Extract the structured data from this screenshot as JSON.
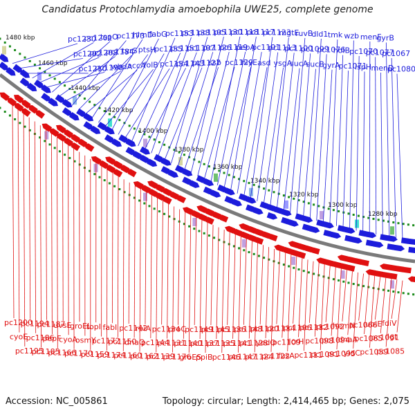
{
  "title": "Candidatus Protochlamydia amoebophila UWE25, complete genome",
  "footer": {
    "accession": "Accession: NC_005861",
    "summary": "Topology: circular; Length: 2,414,465 bp; Genes: 2,075"
  },
  "colors": {
    "forward": "#1c1cdc",
    "reverse": "#e01010",
    "highlight": "#f08ad0",
    "backbone": "#808080",
    "tick": "#1a8a1a"
  },
  "kbp_ticks": [
    "1480 kbp",
    "1460 kbp",
    "1440 kbp",
    "1420 kbp",
    "1400 kbp",
    "1380 kbp",
    "1360 kbp",
    "1340 kbp",
    "1320 kbp",
    "1300 kbp",
    "1280 kbp"
  ],
  "forward_genes": [
    "pc1230",
    "pc1202",
    "pc1210",
    "pc1201",
    "pc1208",
    "pc1198",
    "tspO",
    "pc1184",
    "wbdA",
    "pc1173",
    "tyrS",
    "accA",
    "himD",
    "ptsH",
    "folB",
    "fabG",
    "pc1155",
    "pc1154",
    "pc1153",
    "pc1151",
    "pc1143",
    "pc1138",
    "pc1107",
    "pc1127",
    "pc1105",
    "pc1126",
    "ssb",
    "pc1130",
    "pc1119",
    "pc1129",
    "pc1118",
    "pepA",
    "hlyE",
    "pc1117",
    "pc1101",
    "asd",
    "pc1123",
    "pc1113",
    "ysgA",
    "mgtE",
    "pc1100",
    "sucA",
    "ruvB",
    "pc1099",
    "sucB",
    "dld1",
    "pc1076",
    "gyrA",
    "tmk",
    "holB",
    "pc1071",
    "wzb",
    "pc1070",
    "ispH",
    "menF",
    "pc1077",
    "menD",
    "gyrB",
    "pc1067",
    "pc1080"
  ],
  "reverse_genes": [
    "pc1200",
    "cyoE",
    "pc1195",
    "pc1194",
    "pc1186",
    "pc1185",
    "pc1187",
    "pepF",
    "pc1166",
    "uvsE",
    "cyoA",
    "pc1170",
    "groEL",
    "osmY",
    "pc1159",
    "topI",
    "pc1172",
    "pc1174",
    "fabI",
    "pc1150",
    "pc1160",
    "pc1142",
    "dnaQ",
    "pc1162",
    "rpiA",
    "pc1144",
    "pc1139",
    "pc1134",
    "pc1131",
    "pc1176",
    "proC",
    "pc1140",
    "groES",
    "pc1149",
    "pc1137",
    "ppiB",
    "pc1145",
    "pc1135",
    "pc1146",
    "pc1136",
    "pc1141",
    "pc1147",
    "pc1148",
    "pc1128",
    "pc1124",
    "pc1120",
    "yedO",
    "pc1122",
    "pc1114",
    "pc1109",
    "fusA",
    "pc1106",
    "lcrH",
    "pc1111",
    "pc1112",
    "pc1098",
    "pc1091",
    "pc1092",
    "pc1094",
    "pc1095",
    "hemN",
    "dnaA",
    "yidC",
    "pc1066",
    "pc1065",
    "pc1059",
    "ubiE",
    "pc1061",
    "pc1085",
    "fdiV",
    "lgt"
  ],
  "highlight_genes": [
    "pc1188",
    "pc1125"
  ]
}
